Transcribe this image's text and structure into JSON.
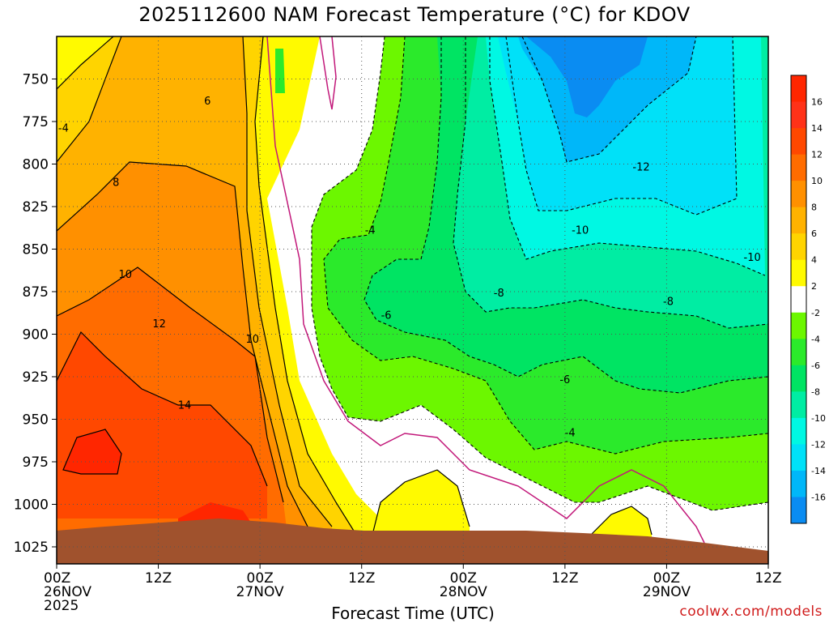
{
  "title": "2025112600 NAM Forecast Temperature (°C) for KDOV",
  "credit": "coolwx.com/models",
  "chart_data": {
    "type": "heatmap",
    "title": "2025112600 NAM Forecast Temperature (°C) for KDOV",
    "xlabel": "Forecast Time (UTC)",
    "ylabel": "",
    "y_scale": "pressure (hPa), inverted",
    "ylim": [
      1035,
      725
    ],
    "xlim_hours": [
      0,
      84
    ],
    "grid": "on (dotted)",
    "y_ticks": [
      750,
      775,
      800,
      825,
      850,
      875,
      900,
      925,
      950,
      975,
      1000,
      1025
    ],
    "x_ticks": [
      {
        "hour": 0,
        "lines": [
          "00Z",
          "26NOV",
          "2025"
        ]
      },
      {
        "hour": 12,
        "lines": [
          "12Z"
        ]
      },
      {
        "hour": 24,
        "lines": [
          "00Z",
          "27NOV"
        ]
      },
      {
        "hour": 36,
        "lines": [
          "12Z"
        ]
      },
      {
        "hour": 48,
        "lines": [
          "00Z",
          "28NOV"
        ]
      },
      {
        "hour": 60,
        "lines": [
          "12Z"
        ]
      },
      {
        "hour": 72,
        "lines": [
          "00Z",
          "29NOV"
        ]
      },
      {
        "hour": 84,
        "lines": [
          "12Z"
        ]
      }
    ],
    "colorbar": {
      "levels": [
        -16,
        -14,
        -12,
        -10,
        -8,
        -6,
        -4,
        -2,
        2,
        4,
        6,
        8,
        10,
        12,
        14,
        16
      ],
      "colors": [
        "#0a8cf2",
        "#00b7f9",
        "#00e1f8",
        "#00f8e3",
        "#00eda3",
        "#00e463",
        "#2bea2b",
        "#6cf700",
        "#ffffff",
        "#fffa00",
        "#ffd400",
        "#ffb200",
        "#ff9000",
        "#ff6c00",
        "#ff4800",
        "#ff3218",
        "#ff2600"
      ]
    },
    "contour_labels": [
      {
        "text": "-4",
        "hour": 0.8,
        "p": 779
      },
      {
        "text": "6",
        "hour": 17.8,
        "p": 763
      },
      {
        "text": "8",
        "hour": 7.0,
        "p": 811
      },
      {
        "text": "10",
        "hour": 8.1,
        "p": 865
      },
      {
        "text": "12",
        "hour": 12.1,
        "p": 894
      },
      {
        "text": "10",
        "hour": 23.1,
        "p": 903
      },
      {
        "text": "14",
        "hour": 15.1,
        "p": 942
      },
      {
        "text": "-4",
        "hour": 37.0,
        "p": 839
      },
      {
        "text": "-6",
        "hour": 38.9,
        "p": 889
      },
      {
        "text": "-8",
        "hour": 52.2,
        "p": 876
      },
      {
        "text": "-10",
        "hour": 61.8,
        "p": 839
      },
      {
        "text": "-12",
        "hour": 69.0,
        "p": 802
      },
      {
        "text": "-10",
        "hour": 82.1,
        "p": 855
      },
      {
        "text": "-8",
        "hour": 72.2,
        "p": 881
      },
      {
        "text": "-6",
        "hour": 60.0,
        "p": 927
      },
      {
        "text": "-4",
        "hour": 60.6,
        "p": 958
      }
    ],
    "terrain": {
      "color": "#a0522d",
      "surface_pressure_at_hours": [
        {
          "hour": 0,
          "p": 1010
        },
        {
          "hour": 12,
          "p": 1008
        },
        {
          "hour": 20,
          "p": 1005
        },
        {
          "hour": 30,
          "p": 1008
        },
        {
          "hour": 40,
          "p": 1010
        },
        {
          "hour": 60,
          "p": 1010
        },
        {
          "hour": 72,
          "p": 1013
        },
        {
          "hour": 84,
          "p": 1020
        }
      ]
    }
  }
}
